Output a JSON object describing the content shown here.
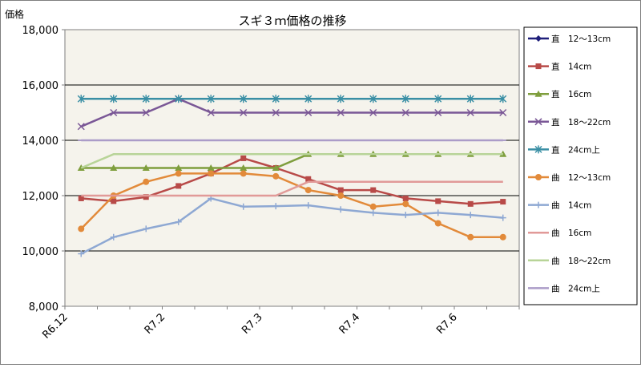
{
  "chart_data": {
    "type": "line",
    "title": "スギ３ｍ価格の推移",
    "ylabel": "価格",
    "xlabel": "",
    "ylim": [
      8000,
      18000
    ],
    "yticks": [
      8000,
      10000,
      12000,
      14000,
      16000,
      18000
    ],
    "ytick_labels": [
      "8,000",
      "10,000",
      "12,000",
      "14,000",
      "16,000",
      "18,000"
    ],
    "x_points": 14,
    "xtick_labels": [
      {
        "index": 0,
        "label": "R6.12"
      },
      {
        "index": 3,
        "label": "R7.2"
      },
      {
        "index": 6,
        "label": "R7.3"
      },
      {
        "index": 9,
        "label": "R7.4"
      },
      {
        "index": 12,
        "label": "R7.6"
      }
    ],
    "grid": "horizontal",
    "legend_position": "right",
    "series": [
      {
        "name": "直　12～13cm",
        "color": "#1f1f7a",
        "marker": "diamond",
        "values": [
          null,
          null,
          null,
          null,
          null,
          null,
          null,
          null,
          null,
          null,
          null,
          null,
          null,
          null
        ]
      },
      {
        "name": "直　14cm",
        "color": "#b84a48",
        "marker": "square",
        "values": [
          11900,
          11800,
          11950,
          12350,
          12800,
          13350,
          13000,
          12600,
          12200,
          12200,
          11900,
          11800,
          11700,
          11780
        ]
      },
      {
        "name": "直　16cm",
        "color": "#7f9e3d",
        "marker": "triangle",
        "values": [
          13000,
          13000,
          13000,
          13000,
          13000,
          13000,
          13000,
          13500,
          13500,
          13500,
          13500,
          13500,
          13500,
          13500
        ]
      },
      {
        "name": "直　18～22cm",
        "color": "#7a5796",
        "marker": "x",
        "values": [
          14500,
          15000,
          15000,
          15500,
          15000,
          15000,
          15000,
          15000,
          15000,
          15000,
          15000,
          15000,
          15000,
          15000
        ]
      },
      {
        "name": "直　24cm上",
        "color": "#3a8fa5",
        "marker": "star",
        "values": [
          15500,
          15500,
          15500,
          15500,
          15500,
          15500,
          15500,
          15500,
          15500,
          15500,
          15500,
          15500,
          15500,
          15500
        ]
      },
      {
        "name": "曲　12～13cm",
        "color": "#e28a3a",
        "marker": "circle",
        "values": [
          10800,
          12000,
          12500,
          12800,
          12800,
          12800,
          12700,
          12200,
          12000,
          11600,
          11700,
          11000,
          10500,
          10500
        ]
      },
      {
        "name": "曲　14cm",
        "color": "#8ea8d3",
        "marker": "plus",
        "values": [
          9900,
          10500,
          10800,
          11050,
          11900,
          11600,
          11620,
          11650,
          11500,
          11380,
          11300,
          11380,
          11300,
          11200
        ]
      },
      {
        "name": "曲　16cm",
        "color": "#e19a98",
        "marker": "none",
        "values": [
          12000,
          12000,
          12000,
          12000,
          12000,
          12000,
          12000,
          12500,
          12500,
          12500,
          12500,
          12500,
          12500,
          12500
        ]
      },
      {
        "name": "曲　18～22cm",
        "color": "#b8d498",
        "marker": "none",
        "values": [
          13000,
          13500,
          13500,
          13500,
          13500,
          13500,
          13500,
          13500,
          13500,
          13500,
          13500,
          13500,
          13500,
          13500
        ]
      },
      {
        "name": "曲　24cm上",
        "color": "#ab9cc8",
        "marker": "dash",
        "values": [
          14000,
          14000,
          14000,
          14000,
          14000,
          14000,
          14000,
          14000,
          14000,
          14000,
          14000,
          14000,
          14000,
          14000
        ]
      }
    ]
  }
}
